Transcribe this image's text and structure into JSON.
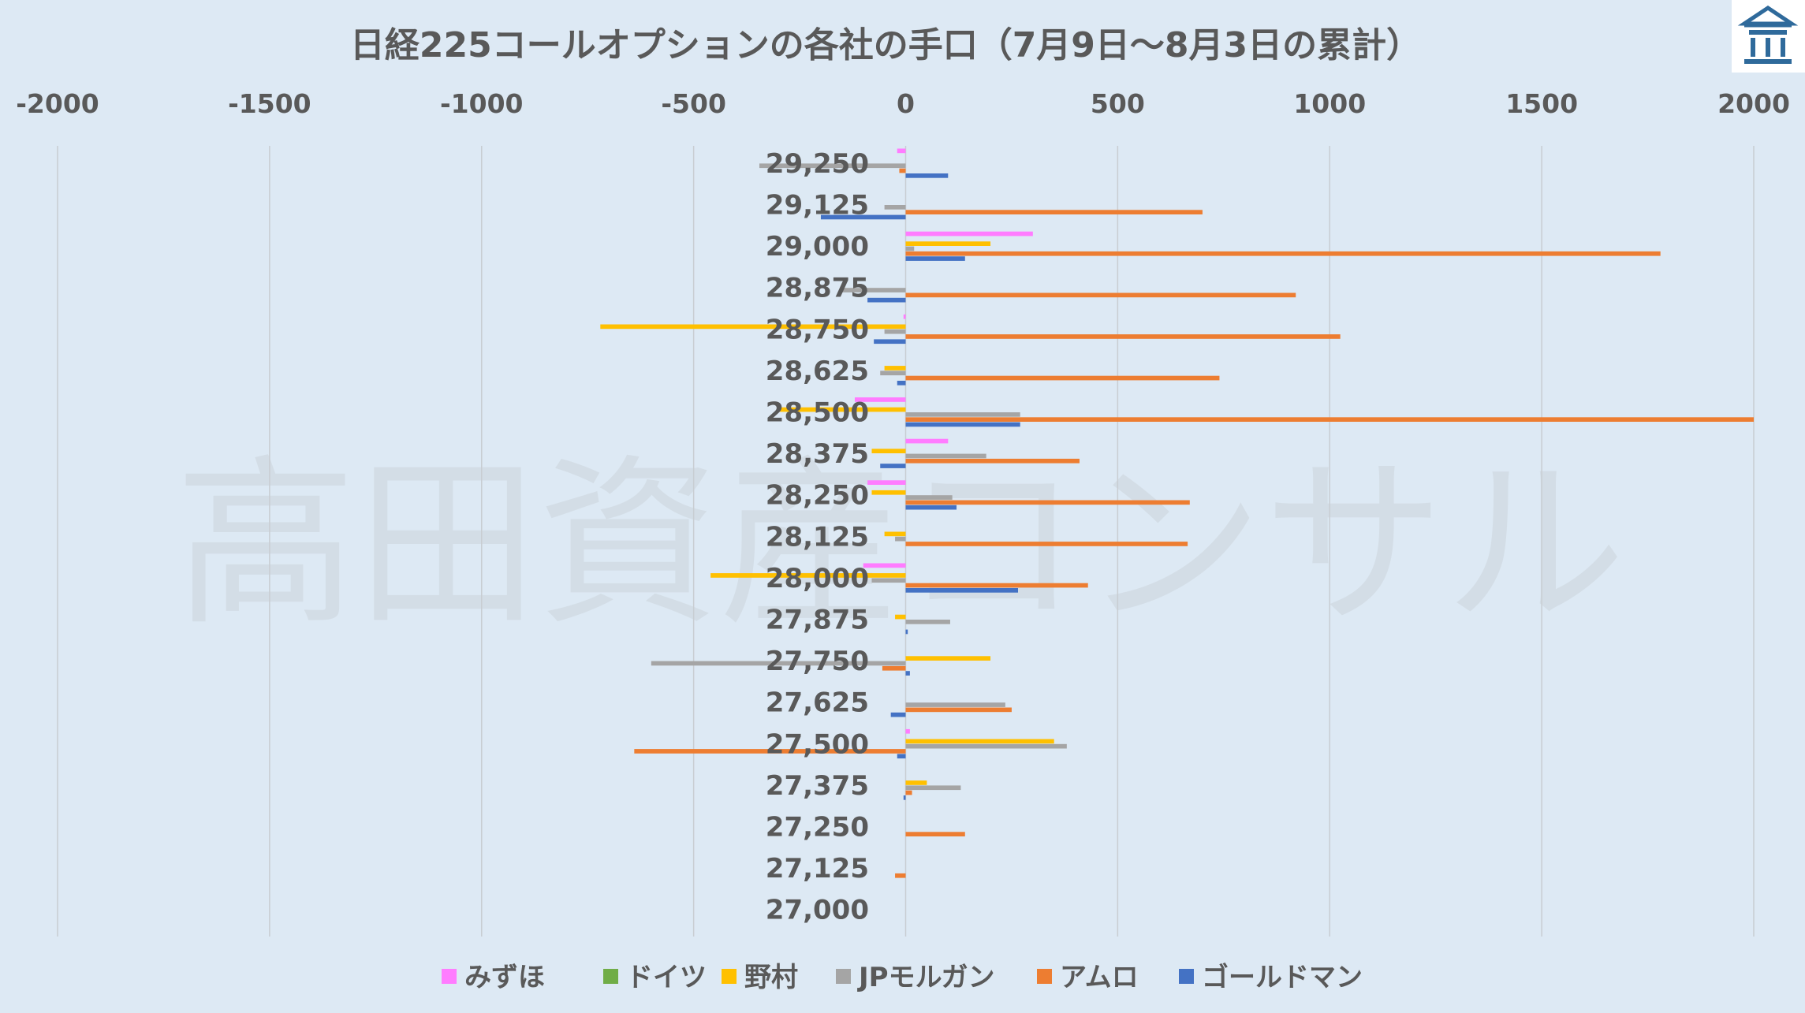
{
  "watermark": "高田資産コンサル",
  "colors": {
    "background": "#dde9f4",
    "grid": "#c8cdd2",
    "logo_border": "#2f6a9b"
  },
  "logo_icon": "building-logo-icon",
  "chart_data": {
    "type": "bar",
    "orientation": "horizontal",
    "title": "日経225コールオプションの各社の手口（7月9日～8月3日の累計）",
    "xlabel": "",
    "ylabel": "",
    "xlim": [
      -2000,
      2000
    ],
    "xticks": [
      -2000,
      -1500,
      -1000,
      -500,
      0,
      500,
      1000,
      1500,
      2000
    ],
    "xtick_labels": [
      "-2000",
      "-1500",
      "-1000",
      "-500",
      "0",
      "500",
      "1000",
      "1500",
      "2000"
    ],
    "x_axis_position": "top",
    "grid": true,
    "legend_position": "bottom",
    "categories": [
      "29,250",
      "29,125",
      "29,000",
      "28,875",
      "28,750",
      "28,625",
      "28,500",
      "28,375",
      "28,250",
      "28,125",
      "28,000",
      "27,875",
      "27,750",
      "27,625",
      "27,500",
      "27,375",
      "27,250",
      "27,125",
      "27,000"
    ],
    "series": [
      {
        "name": "みずほ",
        "color": "#ff7cff",
        "values": [
          -20,
          0,
          300,
          0,
          -5,
          0,
          -120,
          100,
          -90,
          0,
          -100,
          0,
          0,
          0,
          10,
          0,
          0,
          0,
          0
        ]
      },
      {
        "name": "ドイツ",
        "color": "#70ad47",
        "values": [
          0,
          0,
          0,
          0,
          0,
          0,
          0,
          0,
          0,
          0,
          0,
          0,
          0,
          0,
          0,
          0,
          0,
          0,
          0
        ]
      },
      {
        "name": "野村",
        "color": "#ffc000",
        "values": [
          0,
          0,
          200,
          0,
          -720,
          -50,
          -300,
          -80,
          -80,
          -50,
          -460,
          -25,
          200,
          0,
          350,
          50,
          0,
          0,
          0
        ]
      },
      {
        "name": "JPモルガン",
        "color": "#a5a5a5",
        "values": [
          -345,
          -50,
          20,
          -150,
          -50,
          -60,
          270,
          190,
          110,
          -25,
          -80,
          105,
          -600,
          235,
          380,
          130,
          0,
          0,
          0
        ]
      },
      {
        "name": "アムロ",
        "color": "#ed7d31",
        "values": [
          -15,
          700,
          1780,
          920,
          1025,
          740,
          2000,
          410,
          670,
          665,
          430,
          0,
          -55,
          250,
          -640,
          15,
          140,
          -25,
          0
        ]
      },
      {
        "name": "ゴールドマン",
        "color": "#4472c4",
        "values": [
          100,
          -200,
          140,
          -90,
          -75,
          -20,
          270,
          -60,
          120,
          0,
          265,
          5,
          10,
          -35,
          -20,
          -5,
          0,
          0,
          0
        ]
      }
    ]
  }
}
